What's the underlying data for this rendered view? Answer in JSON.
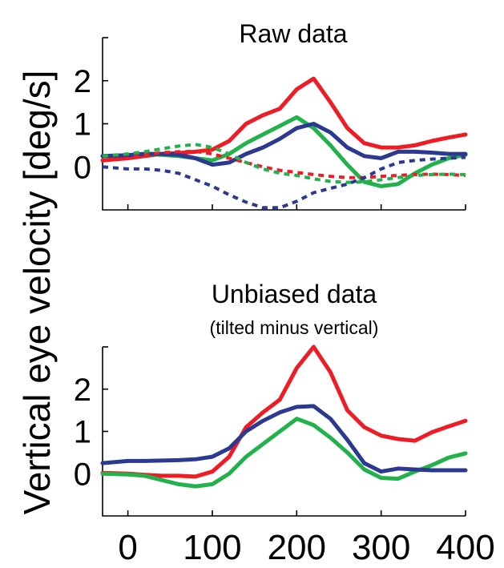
{
  "ylabel": "Vertical eye velocity [deg/s]",
  "x_tick_labels": [
    "0",
    "100",
    "200",
    "300",
    "400"
  ],
  "chart_data": [
    {
      "type": "line",
      "title": "Raw data",
      "subtitle": "",
      "xlim": [
        -30,
        400
      ],
      "ylim": [
        -1.0,
        3.0
      ],
      "x_ticks": [
        0,
        100,
        200,
        300,
        400
      ],
      "y_ticks": [
        0,
        1,
        2
      ],
      "x": [
        -30,
        0,
        20,
        40,
        60,
        80,
        100,
        120,
        140,
        160,
        180,
        200,
        220,
        240,
        260,
        280,
        300,
        320,
        340,
        360,
        380,
        400
      ],
      "series": [
        {
          "color": "#EE1C25",
          "style": "solid",
          "values": [
            0.15,
            0.2,
            0.25,
            0.3,
            0.32,
            0.35,
            0.4,
            0.6,
            1.0,
            1.2,
            1.35,
            1.8,
            2.05,
            1.5,
            0.9,
            0.55,
            0.45,
            0.45,
            0.5,
            0.6,
            0.68,
            0.75
          ]
        },
        {
          "color": "#22B14C",
          "style": "solid",
          "values": [
            0.25,
            0.27,
            0.3,
            0.28,
            0.25,
            0.2,
            0.15,
            0.3,
            0.55,
            0.75,
            0.95,
            1.15,
            0.9,
            0.5,
            0.05,
            -0.35,
            -0.45,
            -0.4,
            -0.15,
            0.05,
            0.2,
            0.28
          ]
        },
        {
          "color": "#2B3990",
          "style": "solid",
          "values": [
            0.25,
            0.27,
            0.3,
            0.3,
            0.28,
            0.2,
            0.05,
            0.1,
            0.3,
            0.45,
            0.65,
            0.9,
            1.0,
            0.8,
            0.45,
            0.25,
            0.2,
            0.35,
            0.35,
            0.33,
            0.3,
            0.3
          ]
        },
        {
          "color": "#EE1C25",
          "style": "dashed",
          "values": [
            0.15,
            0.2,
            0.28,
            0.33,
            0.35,
            0.36,
            0.3,
            0.2,
            0.1,
            0.0,
            -0.08,
            -0.13,
            -0.18,
            -0.22,
            -0.25,
            -0.25,
            -0.22,
            -0.2,
            -0.18,
            -0.17,
            -0.18,
            -0.2
          ]
        },
        {
          "color": "#22B14C",
          "style": "dashed",
          "values": [
            0.25,
            0.3,
            0.35,
            0.42,
            0.48,
            0.52,
            0.45,
            0.3,
            0.1,
            -0.05,
            -0.15,
            -0.2,
            -0.28,
            -0.34,
            -0.36,
            -0.35,
            -0.3,
            -0.25,
            -0.2,
            -0.18,
            -0.17,
            -0.18
          ]
        },
        {
          "color": "#2B3990",
          "style": "dashed",
          "values": [
            0.0,
            -0.05,
            -0.05,
            -0.08,
            -0.15,
            -0.3,
            -0.45,
            -0.65,
            -0.82,
            -0.95,
            -0.95,
            -0.8,
            -0.6,
            -0.5,
            -0.4,
            -0.25,
            -0.05,
            0.1,
            0.15,
            0.18,
            0.2,
            0.22
          ]
        }
      ]
    },
    {
      "type": "line",
      "title": "Unbiased data",
      "subtitle": "(tilted minus vertical)",
      "xlim": [
        -30,
        400
      ],
      "ylim": [
        -1.0,
        3.0
      ],
      "x_ticks": [
        0,
        100,
        200,
        300,
        400
      ],
      "y_ticks": [
        0,
        1,
        2
      ],
      "x": [
        -30,
        0,
        20,
        40,
        60,
        80,
        100,
        120,
        140,
        160,
        180,
        200,
        220,
        240,
        260,
        280,
        300,
        320,
        340,
        360,
        380,
        400
      ],
      "series": [
        {
          "color": "#EE1C25",
          "style": "solid",
          "values": [
            0.02,
            0.0,
            -0.03,
            -0.05,
            -0.05,
            -0.07,
            0.05,
            0.4,
            1.1,
            1.45,
            1.75,
            2.5,
            3.0,
            2.4,
            1.5,
            1.1,
            0.9,
            0.82,
            0.78,
            0.98,
            1.12,
            1.25
          ]
        },
        {
          "color": "#22B14C",
          "style": "solid",
          "values": [
            0.0,
            -0.02,
            -0.05,
            -0.15,
            -0.25,
            -0.3,
            -0.25,
            0.0,
            0.4,
            0.7,
            1.0,
            1.3,
            1.15,
            0.85,
            0.5,
            0.1,
            -0.1,
            -0.12,
            0.05,
            0.2,
            0.38,
            0.48
          ]
        },
        {
          "color": "#2B3990",
          "style": "solid",
          "values": [
            0.25,
            0.3,
            0.3,
            0.31,
            0.32,
            0.34,
            0.4,
            0.6,
            1.0,
            1.25,
            1.45,
            1.58,
            1.6,
            1.3,
            0.8,
            0.25,
            0.05,
            0.12,
            0.1,
            0.08,
            0.08,
            0.08
          ]
        }
      ]
    }
  ]
}
